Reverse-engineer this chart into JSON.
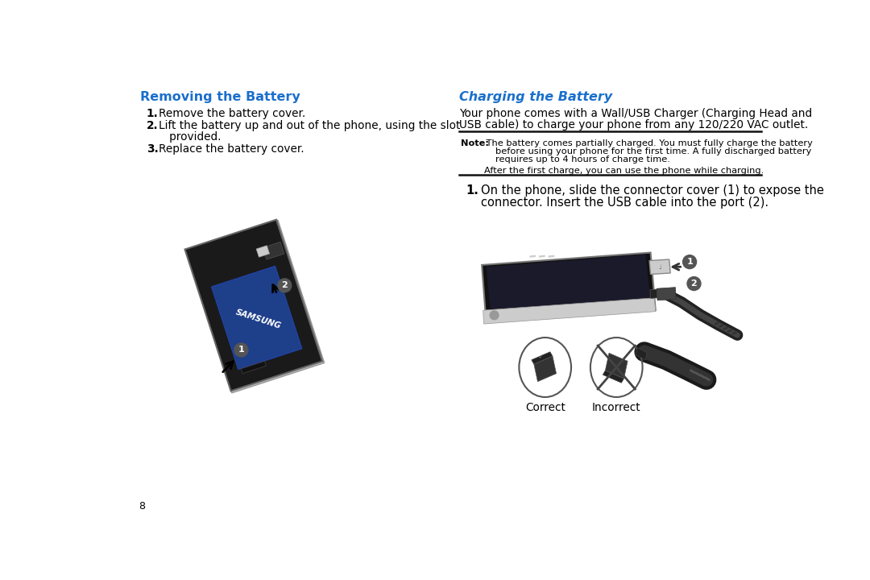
{
  "bg_color": "#ffffff",
  "page_number": "8",
  "left_section": {
    "title": "Removing the Battery",
    "title_color": "#1a6fcc"
  },
  "right_section": {
    "title": "Charging the Battery",
    "title_color": "#1a6fcc",
    "intro_line1": "Your phone comes with a Wall/USB Charger (Charging Head and",
    "intro_line2": "USB cable) to charge your phone from any 120/220 VAC outlet.",
    "note_prefix": "Note:",
    "note_line1": " The battery comes partially charged. You must fully charge the battery",
    "note_line2": "before using your phone for the first time. A fully discharged battery",
    "note_line3": "requires up to 4 hours of charge time.",
    "after_text": "After the first charge, you can use the phone while charging.",
    "step1_num": "1.",
    "step1_line1": "On the phone, slide the connector cover (1) to expose the",
    "step1_line2": "connector. Insert the USB cable into the port (2).",
    "correct_label": "Correct",
    "incorrect_label": "Incorrect"
  },
  "text_color": "#000000",
  "font_size_title": 11.5,
  "font_size_body": 9.8,
  "font_size_note": 8.2,
  "font_size_page": 9,
  "font_size_step": 10.5
}
